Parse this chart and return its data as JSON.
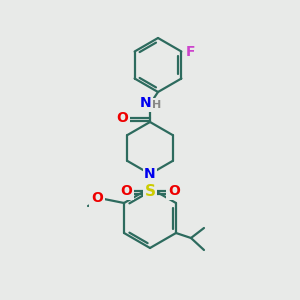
{
  "bg_color": "#e8eae8",
  "bond_color": "#2d6b5e",
  "bond_width": 1.6,
  "atom_colors": {
    "N": "#0000ee",
    "O": "#ee0000",
    "S": "#cccc00",
    "F": "#cc44cc",
    "H": "#888888",
    "C": "#2d6b5e"
  },
  "font_size": 9,
  "fig_size": [
    3.0,
    3.0
  ],
  "dpi": 100
}
